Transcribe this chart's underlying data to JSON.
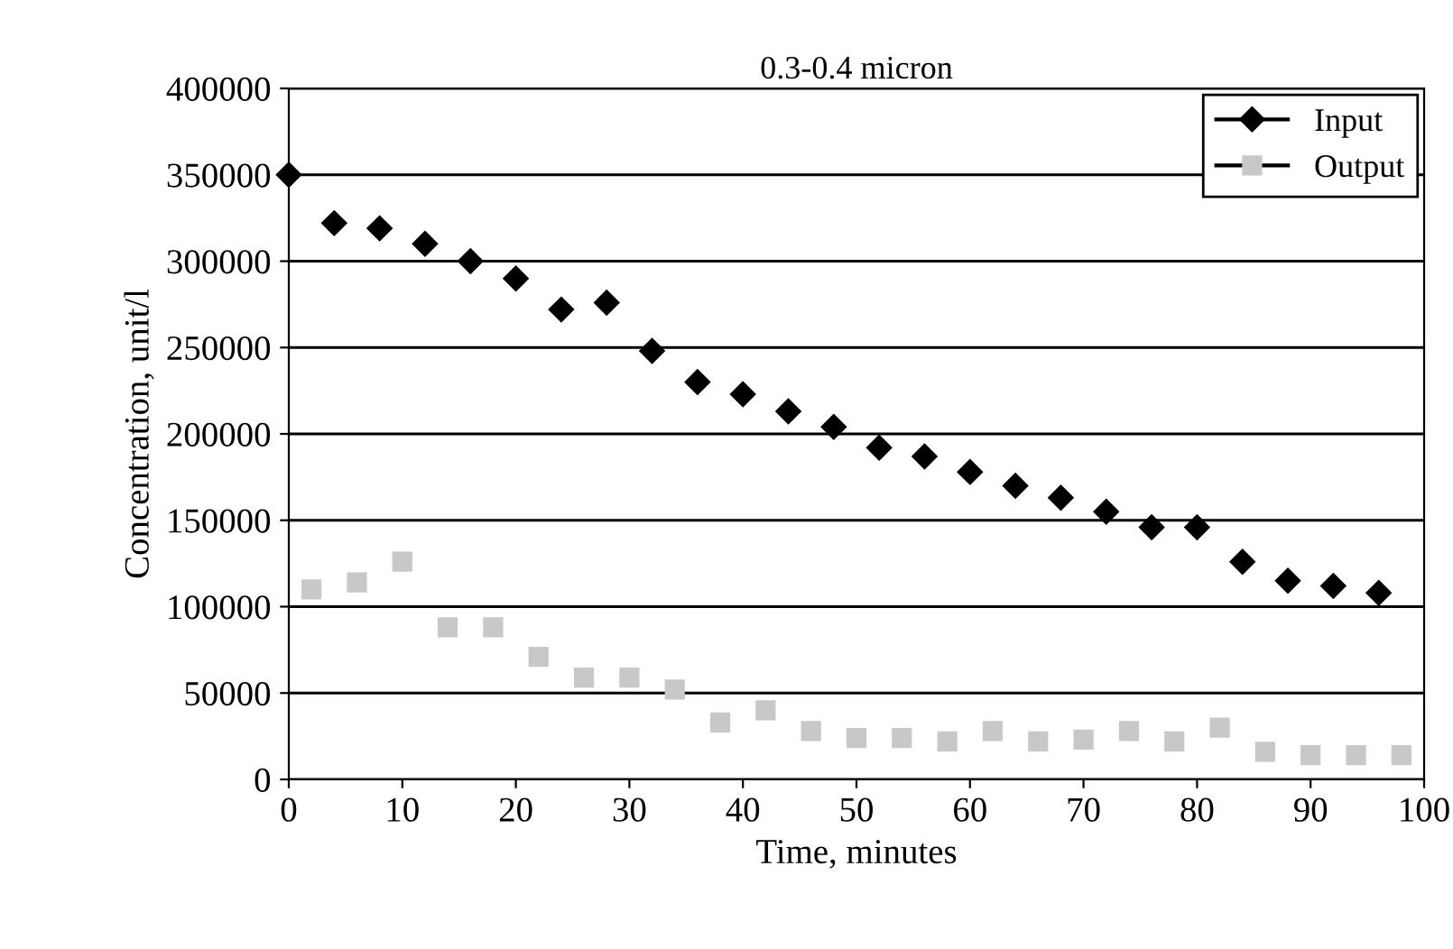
{
  "chart_data": {
    "type": "scatter",
    "title": "0.3-0.4 micron",
    "xlabel": "Time, minutes",
    "ylabel": "Concentration, unit/l",
    "xlim": [
      0,
      100
    ],
    "xticks": [
      0,
      10,
      20,
      30,
      40,
      50,
      60,
      70,
      80,
      90,
      100
    ],
    "ylim": [
      0,
      400000
    ],
    "yticks": [
      0,
      50000,
      100000,
      150000,
      200000,
      250000,
      300000,
      350000,
      400000
    ],
    "grid": "y",
    "legend": "top right",
    "series": [
      {
        "name": "Input",
        "color": "#000000",
        "marker": "diamond",
        "x": [
          0,
          4,
          8,
          12,
          16,
          20,
          24,
          28,
          32,
          36,
          40,
          44,
          48,
          52,
          56,
          60,
          64,
          68,
          72,
          76,
          80,
          84,
          88,
          92,
          96
        ],
        "values": [
          350000,
          322000,
          319000,
          310000,
          300000,
          290000,
          272000,
          276000,
          248000,
          230000,
          223000,
          213000,
          204000,
          192000,
          187000,
          178000,
          170000,
          163000,
          155000,
          146000,
          146000,
          126000,
          115000,
          112000,
          108000
        ]
      },
      {
        "name": "Output",
        "color": "#c8c8c8",
        "marker": "square",
        "x": [
          2,
          6,
          10,
          14,
          18,
          22,
          26,
          30,
          34,
          38,
          42,
          46,
          50,
          54,
          58,
          62,
          66,
          70,
          74,
          78,
          82,
          86,
          90,
          94,
          98
        ],
        "values": [
          110000,
          114000,
          126000,
          88000,
          88000,
          71000,
          59000,
          59000,
          52000,
          33000,
          40000,
          28000,
          24000,
          24000,
          22000,
          28000,
          22000,
          23000,
          28000,
          22000,
          30000,
          16000,
          14000,
          14000,
          14000
        ]
      }
    ]
  }
}
